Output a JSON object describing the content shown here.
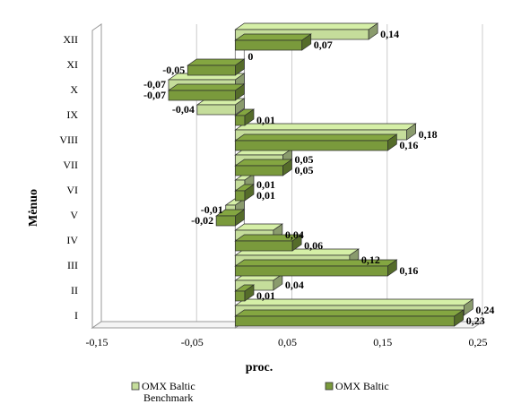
{
  "chart_data": {
    "type": "bar",
    "orientation": "horizontal",
    "categories": [
      "I",
      "II",
      "III",
      "IV",
      "V",
      "VI",
      "VII",
      "VIII",
      "IX",
      "X",
      "XI",
      "XII"
    ],
    "series": [
      {
        "name": "OMX Baltic",
        "color": "#c5dd9b",
        "values": [
          0.24,
          0.04,
          0.12,
          0.04,
          -0.01,
          0.01,
          0.05,
          0.18,
          -0.04,
          -0.07,
          0,
          0.14
        ],
        "labels": [
          "0,24",
          "0,04",
          "0,12",
          "0,04",
          "-0,01",
          "0,01",
          "0,05",
          "0,18",
          "-0,04",
          "-0,07",
          "",
          "0,14"
        ]
      },
      {
        "name": "OMX Baltic Benchmark",
        "color": "#7a9a3c",
        "values": [
          0.23,
          0.01,
          0.16,
          0.06,
          -0.02,
          0.01,
          0.05,
          0.16,
          0.01,
          -0.07,
          -0.05,
          0.07
        ],
        "labels": [
          "0,23",
          "0,01",
          "0,16",
          "0,06",
          "-0,02",
          "0,01",
          "0,05",
          "0,16",
          "0,01",
          "-0,07",
          "-0,05",
          "0,07"
        ]
      }
    ],
    "extra_labels": [
      {
        "category": "XI",
        "text": "0"
      }
    ],
    "xlabel": "proc.",
    "ylabel": "Mėnuo",
    "xlim": [
      -0.15,
      0.25
    ],
    "xticks": [
      -0.15,
      -0.05,
      0.05,
      0.15,
      0.25
    ],
    "xtick_labels": [
      "-0,15",
      "-0,05",
      "0,05",
      "0,15",
      "0,25"
    ],
    "grid": true,
    "legend": {
      "position": "bottom",
      "entries": [
        {
          "line1": "OMX Baltic",
          "line2": ""
        },
        {
          "line1": "OMX Baltic",
          "line2": "Benchmark"
        }
      ]
    }
  }
}
